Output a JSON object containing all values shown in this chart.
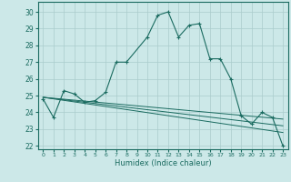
{
  "xlabel": "Humidex (Indice chaleur)",
  "background_color": "#cce8e8",
  "line_color": "#1a6b60",
  "xlim": [
    -0.5,
    23.5
  ],
  "ylim": [
    21.8,
    30.6
  ],
  "xticks": [
    0,
    1,
    2,
    3,
    4,
    5,
    6,
    7,
    8,
    9,
    10,
    11,
    12,
    13,
    14,
    15,
    16,
    17,
    18,
    19,
    20,
    21,
    22,
    23
  ],
  "yticks": [
    22,
    23,
    24,
    25,
    26,
    27,
    28,
    29,
    30
  ],
  "grid_color": "#aacccc",
  "main_curve": {
    "x": [
      0,
      1,
      2,
      3,
      4,
      5,
      6,
      7,
      8,
      10,
      11,
      12,
      13,
      14,
      15,
      16,
      17,
      18,
      19,
      20,
      21,
      22,
      23
    ],
    "y": [
      24.8,
      23.7,
      25.3,
      25.1,
      24.6,
      24.7,
      25.2,
      27.0,
      27.0,
      28.5,
      29.8,
      30.0,
      28.5,
      29.2,
      29.3,
      27.2,
      27.2,
      26.0,
      23.8,
      23.3,
      24.0,
      23.7,
      22.0
    ]
  },
  "trend_lines": [
    {
      "x": [
        0,
        23
      ],
      "y": [
        24.9,
        22.8
      ]
    },
    {
      "x": [
        0,
        23
      ],
      "y": [
        24.9,
        23.2
      ]
    },
    {
      "x": [
        0,
        23
      ],
      "y": [
        24.9,
        23.6
      ]
    }
  ]
}
